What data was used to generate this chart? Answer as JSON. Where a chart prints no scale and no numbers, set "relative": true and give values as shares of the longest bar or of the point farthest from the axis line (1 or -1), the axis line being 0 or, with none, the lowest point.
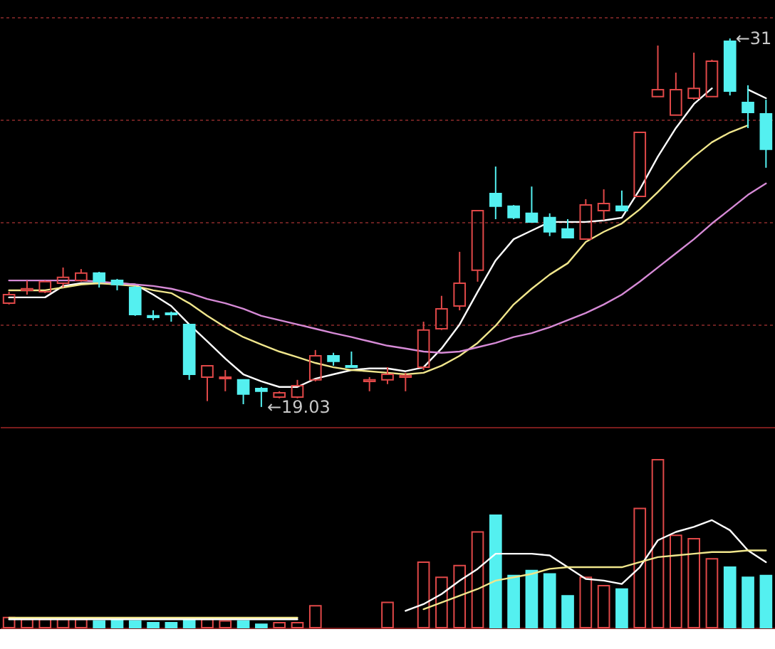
{
  "chart_data": [
    {
      "type": "candlestick",
      "categories": [
        null,
        null,
        null,
        null,
        null,
        null,
        null,
        null,
        null,
        null,
        null,
        null,
        null,
        null,
        null,
        null,
        null,
        null,
        null,
        null,
        null,
        null,
        null,
        null,
        null,
        null,
        null,
        null,
        null,
        null,
        null,
        null,
        null,
        null,
        null,
        null,
        null,
        null,
        null,
        null,
        null,
        null,
        null
      ],
      "ohlc": [
        [
          22.4,
          22.77,
          22.36,
          22.68
        ],
        [
          22.82,
          23.14,
          22.68,
          22.87
        ],
        [
          22.77,
          23.14,
          22.73,
          23.1
        ],
        [
          23.05,
          23.56,
          22.91,
          23.24
        ],
        [
          23.14,
          23.51,
          23.1,
          23.38
        ],
        [
          23.38,
          23.42,
          22.91,
          23.1
        ],
        [
          23.14,
          23.19,
          22.82,
          23.01
        ],
        [
          22.91,
          22.96,
          21.99,
          22.03
        ],
        [
          21.99,
          22.17,
          21.85,
          21.94
        ],
        [
          22.08,
          22.13,
          21.8,
          22.03
        ],
        [
          21.71,
          21.71,
          19.91,
          20.09
        ],
        [
          20.0,
          20.37,
          19.22,
          20.37
        ],
        [
          19.95,
          20.23,
          19.54,
          20.0
        ],
        [
          19.91,
          19.91,
          19.12,
          19.45
        ],
        [
          19.63,
          19.68,
          19.03,
          19.54
        ],
        [
          19.35,
          19.54,
          19.31,
          19.49
        ],
        [
          19.35,
          19.91,
          19.31,
          19.72
        ],
        [
          19.91,
          20.88,
          19.86,
          20.69
        ],
        [
          20.69,
          20.79,
          20.37,
          20.51
        ],
        [
          20.37,
          20.83,
          20.32,
          20.32
        ],
        [
          19.86,
          20.0,
          19.54,
          19.91
        ],
        [
          19.91,
          20.32,
          19.77,
          20.09
        ],
        [
          20.0,
          20.14,
          19.54,
          20.05
        ],
        [
          20.32,
          21.8,
          20.23,
          21.53
        ],
        [
          21.57,
          22.64,
          21.53,
          22.22
        ],
        [
          22.31,
          24.07,
          22.17,
          23.05
        ],
        [
          23.47,
          25.41,
          23.1,
          25.41
        ],
        [
          25.96,
          26.84,
          25.13,
          25.55
        ],
        [
          25.55,
          25.59,
          25.13,
          25.18
        ],
        [
          25.32,
          26.19,
          25.04,
          25.04
        ],
        [
          25.18,
          25.32,
          24.58,
          24.72
        ],
        [
          24.81,
          25.13,
          24.53,
          24.53
        ],
        [
          24.48,
          25.78,
          24.48,
          25.59
        ],
        [
          25.41,
          26.1,
          25.09,
          25.64
        ],
        [
          25.55,
          26.06,
          25.41,
          25.41
        ],
        [
          25.87,
          27.95,
          25.87,
          27.95
        ],
        [
          29.11,
          30.77,
          29.11,
          29.34
        ],
        [
          28.51,
          29.89,
          28.51,
          29.34
        ],
        [
          29.06,
          30.54,
          29.01,
          29.38
        ],
        [
          29.11,
          30.31,
          29.11,
          30.26
        ],
        [
          30.91,
          31.0,
          29.15,
          29.29
        ],
        [
          28.92,
          29.48,
          28.09,
          28.6
        ],
        [
          28.55,
          29.01,
          26.8,
          27.4
        ]
      ],
      "colors": [
        "#e04848",
        "#e04848",
        "#e04848",
        "#e04848",
        "#e04848",
        "#54f0f0",
        "#54f0f0",
        "#54f0f0",
        "#54f0f0",
        "#54f0f0",
        "#54f0f0",
        "#e04848",
        "#e04848",
        "#54f0f0",
        "#54f0f0",
        "#e04848",
        "#e04848",
        "#e04848",
        "#54f0f0",
        "#54f0f0",
        "#e04848",
        "#e04848",
        "#e04848",
        "#e04848",
        "#e04848",
        "#e04848",
        "#e04848",
        "#54f0f0",
        "#54f0f0",
        "#54f0f0",
        "#54f0f0",
        "#54f0f0",
        "#e04848",
        "#e04848",
        "#54f0f0",
        "#e04848",
        "#e04848",
        "#e04848",
        "#e04848",
        "#e04848",
        "#54f0f0",
        "#54f0f0",
        "#54f0f0"
      ],
      "series": [
        {
          "type": "line",
          "color": "#ffffff",
          "values": [
            22.59,
            22.59,
            22.59,
            22.96,
            23.05,
            23.05,
            23.05,
            23.01,
            22.68,
            22.31,
            21.71,
            21.16,
            20.6,
            20.09,
            19.86,
            19.68,
            19.68,
            19.95,
            20.09,
            20.23,
            20.28,
            20.28,
            20.19,
            20.32,
            20.93,
            21.71,
            22.77,
            23.79,
            24.48,
            24.76,
            25.04,
            25.04,
            25.04,
            25.09,
            25.18,
            26.1,
            27.16,
            28.09,
            28.87,
            29.38,
            null,
            29.34,
            29.06
          ]
        },
        {
          "type": "line",
          "color": "#f0e68c",
          "values": [
            22.82,
            22.82,
            22.82,
            22.91,
            23.01,
            23.05,
            23.01,
            22.96,
            22.82,
            22.73,
            22.4,
            21.99,
            21.62,
            21.3,
            21.06,
            20.83,
            20.65,
            20.46,
            20.32,
            20.23,
            20.19,
            20.14,
            20.09,
            20.14,
            20.37,
            20.69,
            21.11,
            21.67,
            22.36,
            22.87,
            23.33,
            23.7,
            24.39,
            24.72,
            24.99,
            25.45,
            26.01,
            26.61,
            27.16,
            27.63,
            27.95,
            28.18,
            null
          ]
        },
        {
          "type": "line",
          "color": "#d68ad6",
          "values": [
            23.14,
            23.14,
            23.14,
            23.14,
            23.14,
            23.1,
            23.05,
            23.01,
            22.96,
            22.87,
            22.73,
            22.54,
            22.4,
            22.22,
            21.99,
            21.85,
            21.71,
            21.57,
            21.43,
            21.3,
            21.16,
            21.02,
            20.93,
            20.83,
            20.79,
            20.83,
            20.97,
            21.11,
            21.3,
            21.43,
            21.62,
            21.85,
            22.08,
            22.36,
            22.68,
            23.1,
            23.56,
            24.02,
            24.48,
            24.99,
            25.45,
            25.92,
            26.29
          ]
        }
      ],
      "ylim": [
        18.38,
        32.25
      ],
      "yticks": [
        {
          "value": 21.71,
          "label": null
        },
        {
          "value": 25.04,
          "label": null
        },
        {
          "value": 28.37,
          "label": null
        },
        {
          "value": 31.69,
          "label": null
        }
      ],
      "grid": "y",
      "tick_labels": false,
      "annotations": [
        "←19.03",
        "←31"
      ]
    },
    {
      "type": "bar",
      "categories": [
        null,
        null,
        null,
        null,
        null,
        null,
        null,
        null,
        null,
        null,
        null,
        null,
        null,
        null,
        null,
        null,
        null,
        null,
        null,
        null,
        null,
        null,
        null,
        null,
        null,
        null,
        null,
        null,
        null,
        null,
        null,
        null,
        null,
        null,
        null,
        null,
        null,
        null,
        null,
        null,
        null,
        null,
        null
      ],
      "relative": true,
      "series": [
        {
          "type": "bar",
          "colors": [
            "#e04848",
            "#e04848",
            "#e04848",
            "#e04848",
            "#e04848",
            "#54f0f0",
            "#54f0f0",
            "#54f0f0",
            "#54f0f0",
            "#54f0f0",
            "#54f0f0",
            "#e04848",
            "#e04848",
            "#54f0f0",
            "#54f0f0",
            "#e04848",
            "#e04848",
            "#e04848",
            "#54f0f0",
            "#54f0f0",
            "#e04848",
            "#e04848",
            "#e04848",
            "#e04848",
            "#e04848",
            "#e04848",
            "#e04848",
            "#54f0f0",
            "#54f0f0",
            "#54f0f0",
            "#54f0f0",
            "#54f0f0",
            "#e04848",
            "#e04848",
            "#54f0f0",
            "#e04848",
            "#e04848",
            "#e04848",
            "#e04848",
            "#e04848",
            "#54f0f0",
            "#54f0f0",
            "#54f0f0"
          ],
          "values": [
            0.06,
            0.05,
            0.05,
            0.05,
            0.05,
            0.04,
            0.05,
            0.04,
            0.03,
            0.03,
            0.05,
            0.05,
            0.04,
            0.04,
            0.02,
            0.03,
            0.03,
            0.13,
            null,
            null,
            null,
            0.15,
            null,
            0.39,
            0.3,
            0.37,
            0.57,
            0.67,
            0.31,
            0.34,
            0.32,
            0.19,
            0.3,
            0.25,
            0.23,
            0.71,
            1,
            0.55,
            0.53,
            0.41,
            0.36,
            0.3,
            0.31
          ]
        },
        {
          "type": "line",
          "color": "#ffffff",
          "values": [
            0.05,
            0.05,
            0.05,
            0.05,
            0.05,
            0.05,
            0.05,
            0.05,
            0.05,
            0.05,
            0.05,
            0.05,
            0.05,
            0.05,
            0.05,
            0.05,
            0.05,
            null,
            null,
            null,
            null,
            null,
            0.1,
            0.14,
            0.2,
            0.28,
            0.35,
            0.44,
            0.44,
            0.44,
            0.43,
            0.36,
            0.29,
            0.28,
            0.26,
            0.36,
            0.52,
            0.57,
            0.6,
            0.64,
            0.58,
            0.46,
            0.39
          ]
        },
        {
          "type": "line",
          "color": "#f0e68c",
          "values": [
            0.06,
            0.06,
            0.06,
            0.06,
            0.06,
            0.06,
            0.06,
            0.06,
            0.06,
            0.06,
            0.06,
            0.06,
            0.06,
            0.06,
            0.06,
            0.06,
            0.06,
            null,
            null,
            null,
            null,
            null,
            null,
            0.11,
            0.15,
            0.19,
            0.23,
            0.28,
            0.3,
            0.32,
            0.35,
            0.36,
            0.36,
            0.36,
            0.36,
            0.39,
            0.42,
            0.43,
            0.44,
            0.45,
            0.45,
            0.46,
            0.46
          ]
        }
      ]
    }
  ]
}
